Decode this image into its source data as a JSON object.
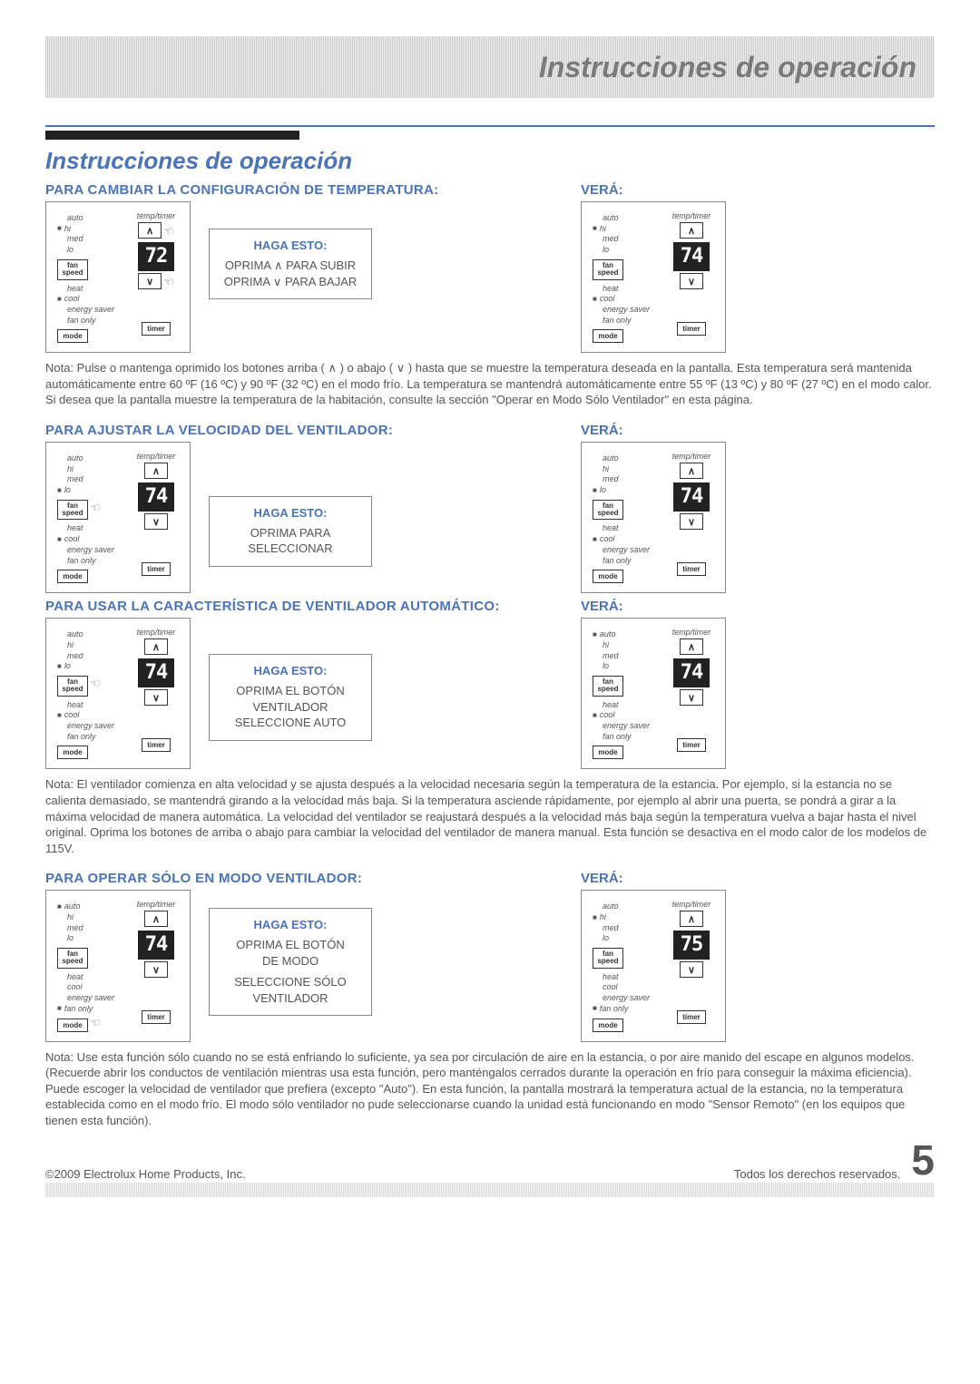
{
  "header": {
    "title": "Instrucciones de operación"
  },
  "main_title": "Instrucciones de operación",
  "sections": {
    "temp": {
      "heading": "PARA CAMBIAR LA CONFIGURACIÓN DE TEMPERATURA:",
      "vera": "VERÁ:",
      "callout_title": "HAGA ESTO:",
      "callout_line1": "OPRIMA  ∧  PARA SUBIR",
      "callout_line2": "OPRIMA  ∨  PARA BAJAR",
      "panel_left": {
        "display": "72",
        "fan_sel": "hi",
        "mode_sel": "cool",
        "hand_up": true,
        "hand_down": true
      },
      "panel_right": {
        "display": "74",
        "fan_sel": "hi",
        "mode_sel": "cool"
      },
      "note": "Nota: Pulse o mantenga oprimido los botones arriba ( ∧ ) o abajo ( ∨ ) hasta que se muestre la temperatura deseada en la pantalla. Esta temperatura será mantenida automáticamente entre 60 ºF (16 ºC) y 90 ºF (32 ºC) en el modo frío. La temperatura se mantendrá automáticamente entre 55 ºF (13 ºC) y 80 ºF (27 ºC) en el modo calor. Si desea que la pantalla muestre la temperatura de la habitación, consulte la sección \"Operar en Modo Sólo Ventilador\" en esta página."
    },
    "fanspeed": {
      "heading": "PARA AJUSTAR LA VELOCIDAD DEL VENTILADOR:",
      "vera": "VERÁ:",
      "callout_title": "HAGA ESTO:",
      "callout_line1": "OPRIMA PARA",
      "callout_line2": "SELECCIONAR",
      "panel_left": {
        "display": "74",
        "fan_sel": "lo",
        "mode_sel": "cool",
        "hand_fan": true
      },
      "panel_right": {
        "display": "74",
        "fan_sel": "lo",
        "mode_sel": "cool"
      }
    },
    "autofan": {
      "heading": "PARA USAR LA CARACTERÍSTICA DE VENTILADOR AUTOMÁTICO:",
      "vera": "VERÁ:",
      "callout_title": "HAGA ESTO:",
      "callout_line1": "OPRIMA EL BOTÓN",
      "callout_line2": "VENTILADOR",
      "callout_line3": "SELECCIONE AUTO",
      "panel_left": {
        "display": "74",
        "fan_sel": "lo",
        "mode_sel": "cool",
        "hand_fan": true
      },
      "panel_right": {
        "display": "74",
        "fan_sel": "auto",
        "mode_sel": "cool"
      },
      "note": "Nota: El ventilador comienza en alta velocidad y se ajusta después a la velocidad necesaria según la temperatura de la estancia. Por ejemplo, si la estancia no se calienta demasiado, se mantendrá girando a la velocidad más baja. Si la temperatura asciende rápidamente, por ejemplo al abrir una puerta, se pondrá a girar a la máxima velocidad de manera automática. La velocidad del ventilador se reajustará después a la velocidad más baja según la temperatura vuelva a bajar hasta el nivel original. Oprima los botones de arriba o abajo para cambiar la velocidad del ventilador de manera manual. Esta función se desactiva en el modo calor de los modelos de 115V."
    },
    "fanonly": {
      "heading": "PARA OPERAR SÓLO EN MODO VENTILADOR:",
      "vera": "VERÁ:",
      "callout_title": "HAGA ESTO:",
      "callout_line1": "OPRIMA EL BOTÓN",
      "callout_line2": "DE MODO",
      "callout_line3": "SELECCIONE SÓLO",
      "callout_line4": "VENTILADOR",
      "panel_left": {
        "display": "74",
        "fan_sel": "auto",
        "mode_sel": "fan only",
        "hand_mode": true
      },
      "panel_right": {
        "display": "75",
        "fan_sel": "hi",
        "mode_sel": "fan only"
      },
      "note": "Nota: Use esta función sólo cuando no se está enfriando lo suficiente, ya sea por circulación de aire en la estancia, o por aire manido del escape en algunos modelos. (Recuerde abrir los conductos de ventilación mientras usa esta función, pero manténgalos cerrados durante la operación en frío para conseguir la máxima eficiencia). Puede escoger la velocidad de ventilador que prefiera (excepto \"Auto\"). En esta función, la pantalla mostrará la temperatura actual de la estancia, no la temperatura establecida como en el modo frío. El modo sólo ventilador no pude seleccionarse cuando la unidad está funcionando en modo \"Sensor Remoto\" (en los equipos que tienen esta función)."
    }
  },
  "panel_labels": {
    "temp_timer": "temp/timer",
    "fan": {
      "auto": "auto",
      "hi": "hi",
      "med": "med",
      "lo": "lo"
    },
    "mode": {
      "heat": "heat",
      "cool": "cool",
      "energy_saver": "energy saver",
      "fan_only": "fan only"
    },
    "fan_speed_btn": "fan speed",
    "mode_btn": "mode",
    "timer_btn": "timer",
    "up": "∧",
    "down": "∨"
  },
  "footer": {
    "copyright": "©2009 Electrolux Home Products, Inc.",
    "rights": "Todos los derechos reservados.",
    "page": "5"
  },
  "colors": {
    "blue": "#4a73b8",
    "gray_text": "#666666",
    "border": "#888888"
  }
}
